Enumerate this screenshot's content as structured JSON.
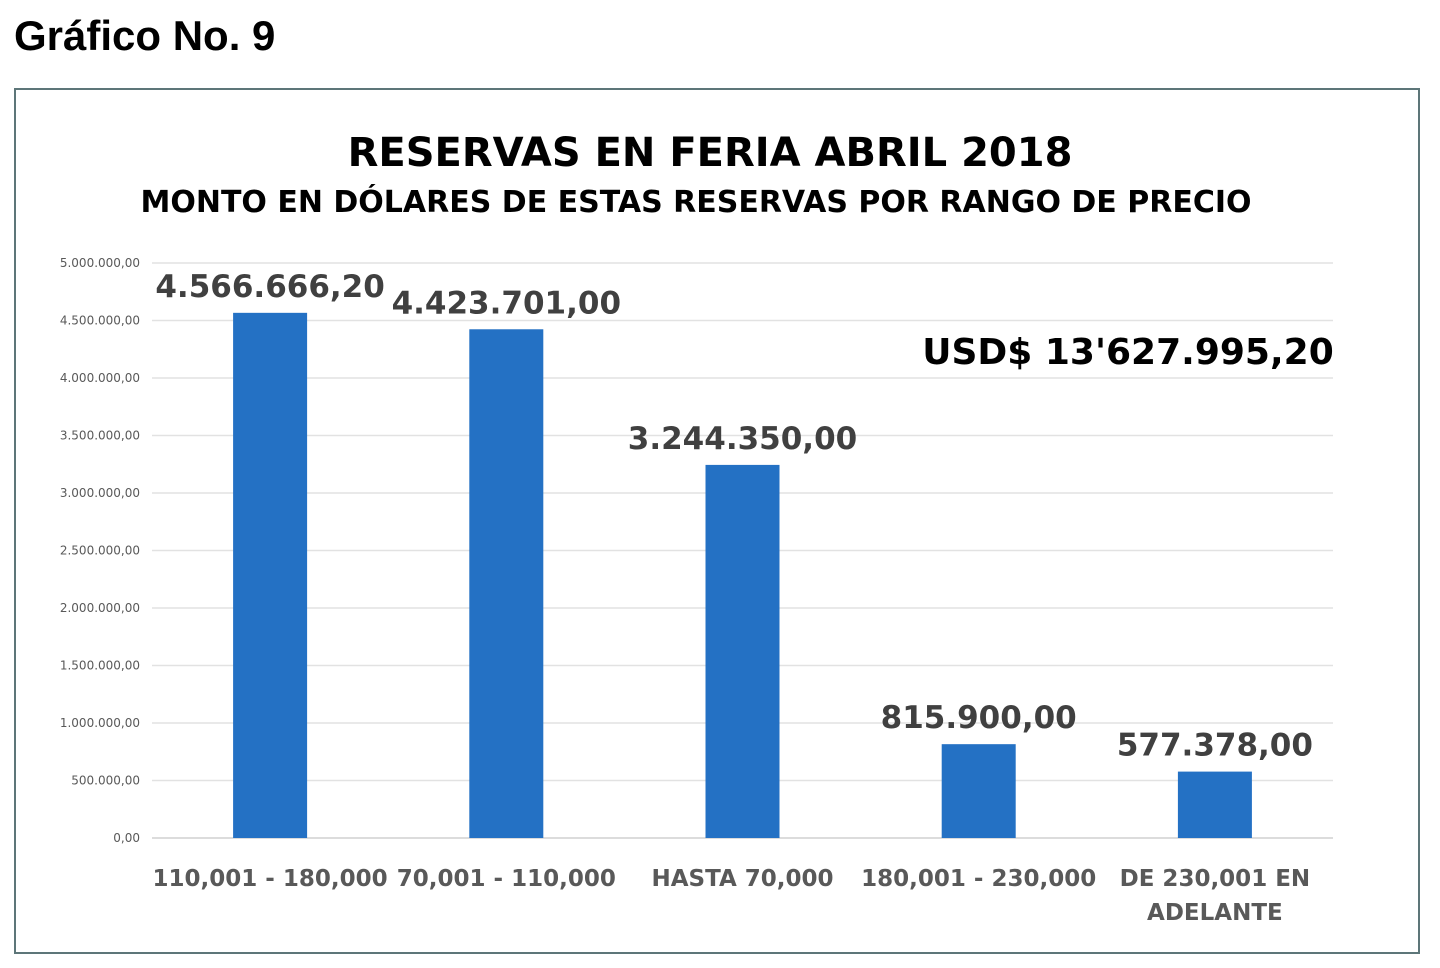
{
  "heading": "Gráfico No. 9",
  "chart_data": {
    "type": "bar",
    "title": "RESERVAS EN FERIA ABRIL 2018",
    "subtitle": "MONTO EN DÓLARES DE ESTAS RESERVAS POR RANGO DE PRECIO",
    "annotation": "USD$ 13'627.995,20",
    "categories": [
      [
        "110,001 - 180,000"
      ],
      [
        "70,001 - 110,000"
      ],
      [
        "HASTA 70,000"
      ],
      [
        "180,001 - 230,000"
      ],
      [
        "DE 230,001 EN",
        "ADELANTE"
      ]
    ],
    "values": [
      4566666.2,
      4423701.0,
      3244350.0,
      815900.0,
      577378.0
    ],
    "data_labels": [
      "4.566.666,20",
      "4.423.701,00",
      "3.244.350,00",
      "815.900,00",
      "577.378,00"
    ],
    "yticks": [
      "0,00",
      "500.000,00",
      "1.000.000,00",
      "1.500.000,00",
      "2.000.000,00",
      "2.500.000,00",
      "3.000.000,00",
      "3.500.000,00",
      "4.000.000,00",
      "4.500.000,00",
      "5.000.000,00"
    ],
    "ylim": [
      0,
      5000000
    ],
    "xlabel": "",
    "ylabel": "",
    "grid": true,
    "bar_color": "#2471c4"
  }
}
